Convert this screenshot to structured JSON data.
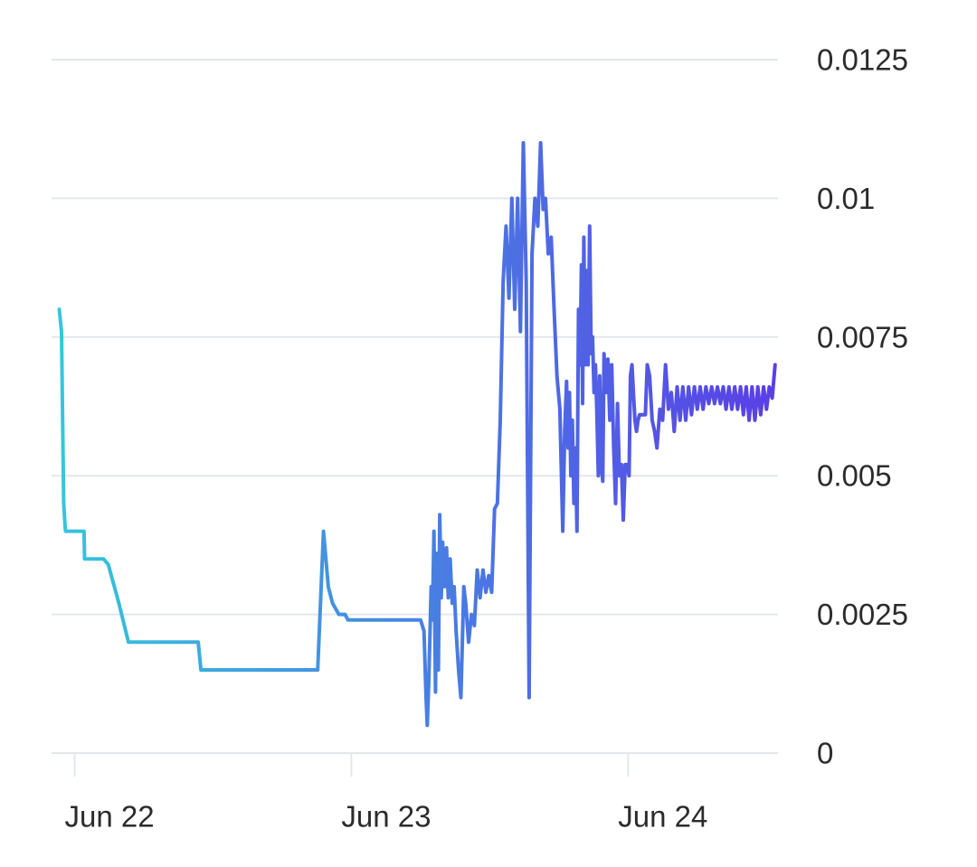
{
  "colors": {
    "background": "#ffffff",
    "grid": "#e3e7ec",
    "axis_text": "#2b2b2b",
    "line_start": "#35c6dc",
    "line_end": "#5a3ee6"
  },
  "chart_data": {
    "type": "line",
    "title": "",
    "xlabel": "",
    "ylabel": "",
    "grid": true,
    "y_axis_side": "right",
    "xlim": [
      "2022-06-21T22:00",
      "2022-06-24T13:00"
    ],
    "ylim": [
      0,
      0.0125
    ],
    "y_ticks": [
      0,
      0.0025,
      0.005,
      0.0075,
      0.01,
      0.0125
    ],
    "y_tick_labels": [
      "0",
      "0.0025",
      "0.005",
      "0.0075",
      "0.01",
      "0.0125"
    ],
    "x_ticks": [
      "2022-06-22T00:00",
      "2022-06-23T00:00",
      "2022-06-24T00:00"
    ],
    "x_tick_labels": [
      "Jun 22",
      "Jun 23",
      "Jun 24"
    ],
    "series": [
      {
        "x": [
          "2022-06-21T22:40",
          "2022-06-21T22:52",
          "2022-06-21T23:03",
          "2022-06-21T23:10",
          "2022-06-21T23:13",
          "2022-06-21T23:17",
          "2022-06-22T00:49",
          "2022-06-22T00:52",
          "2022-06-22T02:30",
          "2022-06-22T02:55",
          "2022-06-22T03:50",
          "2022-06-22T04:40",
          "2022-06-22T07:20",
          "2022-06-22T10:43",
          "2022-06-22T10:57",
          "2022-06-22T20:55",
          "2022-06-22T21:05",
          "2022-06-22T21:35",
          "2022-06-22T22:00",
          "2022-06-22T22:22",
          "2022-06-22T22:55",
          "2022-06-22T23:27",
          "2022-06-22T23:42",
          "2022-06-23T06:00",
          "2022-06-23T06:18",
          "2022-06-23T06:29",
          "2022-06-23T06:35",
          "2022-06-23T06:43",
          "2022-06-23T06:55",
          "2022-06-23T07:02",
          "2022-06-23T07:10",
          "2022-06-23T07:18",
          "2022-06-23T07:25",
          "2022-06-23T07:33",
          "2022-06-23T07:40",
          "2022-06-23T07:48",
          "2022-06-23T07:55",
          "2022-06-23T08:05",
          "2022-06-23T08:15",
          "2022-06-23T08:24",
          "2022-06-23T08:34",
          "2022-06-23T08:45",
          "2022-06-23T08:55",
          "2022-06-23T09:05",
          "2022-06-23T09:18",
          "2022-06-23T09:30",
          "2022-06-23T09:45",
          "2022-06-23T09:55",
          "2022-06-23T10:10",
          "2022-06-23T10:25",
          "2022-06-23T10:40",
          "2022-06-23T10:55",
          "2022-06-23T11:10",
          "2022-06-23T11:25",
          "2022-06-23T11:40",
          "2022-06-23T11:55",
          "2022-06-23T12:10",
          "2022-06-23T12:25",
          "2022-06-23T12:40",
          "2022-06-23T12:55",
          "2022-06-23T13:10",
          "2022-06-23T13:25",
          "2022-06-23T13:40",
          "2022-06-23T13:55",
          "2022-06-23T14:10",
          "2022-06-23T14:25",
          "2022-06-23T14:40",
          "2022-06-23T14:55",
          "2022-06-23T15:10",
          "2022-06-23T15:25",
          "2022-06-23T15:40",
          "2022-06-23T15:55",
          "2022-06-23T16:10",
          "2022-06-23T16:25",
          "2022-06-23T16:38",
          "2022-06-23T16:50",
          "2022-06-23T17:05",
          "2022-06-23T17:20",
          "2022-06-23T17:35",
          "2022-06-23T17:50",
          "2022-06-23T18:05",
          "2022-06-23T18:20",
          "2022-06-23T18:30",
          "2022-06-23T18:40",
          "2022-06-23T18:48",
          "2022-06-23T18:55",
          "2022-06-23T19:02",
          "2022-06-23T19:10",
          "2022-06-23T19:18",
          "2022-06-23T19:26",
          "2022-06-23T19:34",
          "2022-06-23T19:42",
          "2022-06-23T19:50",
          "2022-06-23T19:57",
          "2022-06-23T20:03",
          "2022-06-23T20:10",
          "2022-06-23T20:17",
          "2022-06-23T20:24",
          "2022-06-23T20:32",
          "2022-06-23T20:40",
          "2022-06-23T20:48",
          "2022-06-23T20:55",
          "2022-06-23T21:03",
          "2022-06-23T21:10",
          "2022-06-23T21:17",
          "2022-06-23T21:25",
          "2022-06-23T21:32",
          "2022-06-23T21:40",
          "2022-06-23T21:48",
          "2022-06-23T21:55",
          "2022-06-23T22:05",
          "2022-06-23T22:15",
          "2022-06-23T22:25",
          "2022-06-23T22:35",
          "2022-06-23T22:45",
          "2022-06-23T22:55",
          "2022-06-23T23:05",
          "2022-06-23T23:15",
          "2022-06-23T23:25",
          "2022-06-23T23:35",
          "2022-06-23T23:45",
          "2022-06-23T23:55",
          "2022-06-24T00:05",
          "2022-06-24T00:12",
          "2022-06-24T00:20",
          "2022-06-24T00:28",
          "2022-06-24T00:36",
          "2022-06-24T00:44",
          "2022-06-24T00:52",
          "2022-06-24T01:00",
          "2022-06-24T01:10",
          "2022-06-24T01:20",
          "2022-06-24T01:30",
          "2022-06-24T01:40",
          "2022-06-24T01:52",
          "2022-06-24T02:05",
          "2022-06-24T02:18",
          "2022-06-24T02:30",
          "2022-06-24T02:45",
          "2022-06-24T03:00",
          "2022-06-24T03:15",
          "2022-06-24T03:30",
          "2022-06-24T03:45",
          "2022-06-24T04:00",
          "2022-06-24T04:15",
          "2022-06-24T04:30",
          "2022-06-24T04:45",
          "2022-06-24T05:00",
          "2022-06-24T05:15",
          "2022-06-24T05:30",
          "2022-06-24T05:45",
          "2022-06-24T06:00",
          "2022-06-24T06:15",
          "2022-06-24T06:30",
          "2022-06-24T06:45",
          "2022-06-24T07:00",
          "2022-06-24T07:15",
          "2022-06-24T07:30",
          "2022-06-24T07:45",
          "2022-06-24T08:00",
          "2022-06-24T08:15",
          "2022-06-24T08:30",
          "2022-06-24T08:45",
          "2022-06-24T09:00",
          "2022-06-24T09:15",
          "2022-06-24T09:30",
          "2022-06-24T09:45",
          "2022-06-24T10:00",
          "2022-06-24T10:15",
          "2022-06-24T10:30",
          "2022-06-24T10:45",
          "2022-06-24T11:00",
          "2022-06-24T11:15",
          "2022-06-24T11:30",
          "2022-06-24T11:45",
          "2022-06-24T12:00",
          "2022-06-24T12:15",
          "2022-06-24T12:30",
          "2022-06-24T12:45"
        ],
        "y": [
          0.008,
          0.0076,
          0.0045,
          0.0041,
          0.004,
          0.004,
          0.004,
          0.0035,
          0.0035,
          0.0034,
          0.0027,
          0.002,
          0.002,
          0.002,
          0.0015,
          0.0015,
          0.0015,
          0.004,
          0.003,
          0.0027,
          0.0025,
          0.0025,
          0.0024,
          0.0024,
          0.0022,
          0.001,
          0.0005,
          0.0013,
          0.003,
          0.0024,
          0.004,
          0.0011,
          0.0036,
          0.0015,
          0.0043,
          0.0028,
          0.0038,
          0.003,
          0.0037,
          0.0028,
          0.0035,
          0.0027,
          0.003,
          0.0022,
          0.0015,
          0.001,
          0.003,
          0.0027,
          0.002,
          0.0025,
          0.0023,
          0.0033,
          0.0028,
          0.0033,
          0.0029,
          0.0032,
          0.0029,
          0.0044,
          0.0045,
          0.006,
          0.0085,
          0.0095,
          0.0082,
          0.01,
          0.008,
          0.01,
          0.0076,
          0.011,
          0.0085,
          0.001,
          0.009,
          0.01,
          0.0095,
          0.011,
          0.0098,
          0.01,
          0.009,
          0.0093,
          0.008,
          0.0068,
          0.0062,
          0.004,
          0.0058,
          0.0067,
          0.0055,
          0.0065,
          0.005,
          0.006,
          0.0045,
          0.0055,
          0.004,
          0.008,
          0.007,
          0.0088,
          0.0063,
          0.0093,
          0.007,
          0.0087,
          0.007,
          0.0095,
          0.0072,
          0.0075,
          0.0065,
          0.007,
          0.0062,
          0.005,
          0.0068,
          0.0052,
          0.0049,
          0.0072,
          0.0065,
          0.0071,
          0.006,
          0.007,
          0.0055,
          0.0045,
          0.0063,
          0.005,
          0.0052,
          0.0042,
          0.0052,
          0.0052,
          0.005,
          0.0068,
          0.007,
          0.0065,
          0.006,
          0.0058,
          0.006,
          0.0061,
          0.0061,
          0.0061,
          0.0061,
          0.007,
          0.0068,
          0.006,
          0.0058,
          0.0055,
          0.0062,
          0.006,
          0.007,
          0.0062,
          0.0065,
          0.0058,
          0.0066,
          0.006,
          0.0066,
          0.006,
          0.0066,
          0.0061,
          0.0066,
          0.0062,
          0.0066,
          0.0062,
          0.0066,
          0.0063,
          0.0066,
          0.0063,
          0.0066,
          0.0063,
          0.0066,
          0.0062,
          0.0066,
          0.0062,
          0.0066,
          0.0062,
          0.0066,
          0.0061,
          0.0066,
          0.006,
          0.0066,
          0.006,
          0.0066,
          0.0061,
          0.0066,
          0.0062,
          0.0066,
          0.0064,
          0.007
        ]
      }
    ]
  }
}
